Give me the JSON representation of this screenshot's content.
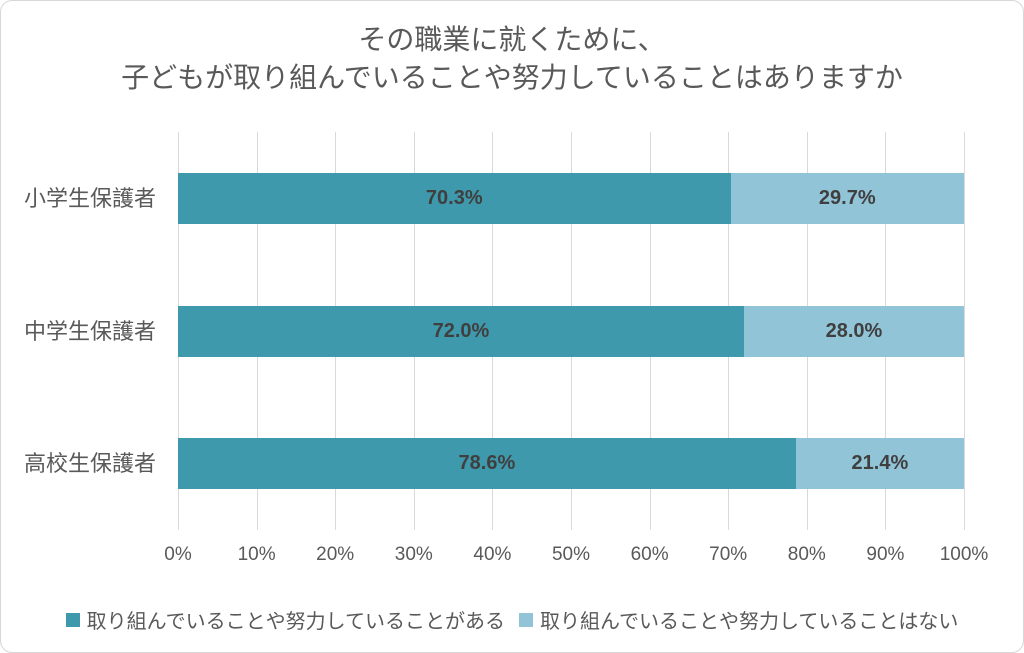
{
  "title": {
    "line1": "その職業に就くために、",
    "line2": "子どもが取り組んでいることや努力していることはありますか"
  },
  "chart_data": {
    "type": "bar",
    "orientation": "horizontal",
    "stacked": true,
    "stacked_to_100_percent": true,
    "title": "その職業に就くために、 子どもが取り組んでいることや努力していることはありますか",
    "categories": [
      "小学生保護者",
      "中学生保護者",
      "高校生保護者"
    ],
    "series": [
      {
        "name": "取り組んでいることや努力していることがある",
        "color": "#3f99ac",
        "values": [
          70.3,
          72.0,
          78.6
        ],
        "data_labels": [
          "70.3%",
          "72.0%",
          "78.6%"
        ]
      },
      {
        "name": "取り組んでいることや努力していることはない",
        "color": "#92c4d7",
        "values": [
          29.7,
          28.0,
          21.4
        ],
        "data_labels": [
          "29.7%",
          "28.0%",
          "21.4%"
        ]
      }
    ],
    "x_ticks": [
      "0%",
      "10%",
      "20%",
      "30%",
      "40%",
      "50%",
      "60%",
      "70%",
      "80%",
      "90%",
      "100%"
    ],
    "xlim": [
      0,
      100
    ],
    "grid": true,
    "gridline_color": "#d9d9d9",
    "legend_position": "bottom",
    "data_label_color": "#3f3f3f",
    "axis_text_color": "#595959"
  }
}
